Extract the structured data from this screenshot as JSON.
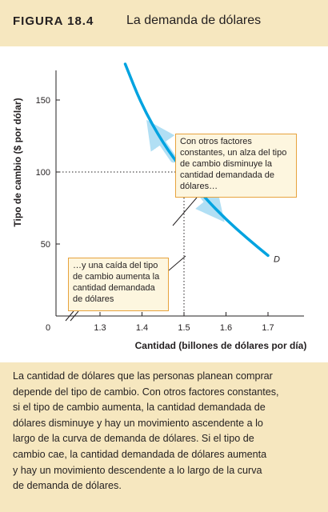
{
  "figure": {
    "label": "FIGURA 18.4",
    "title": "La demanda de dólares"
  },
  "chart_data": {
    "type": "line",
    "title": "La demanda de dólares",
    "xlabel": "Cantidad (billones de dólares por día)",
    "ylabel": "Tipo de cambio ($ por dólar)",
    "x_ticks": [
      "1.3",
      "1.4",
      "1.5",
      "1.6",
      "1.7"
    ],
    "y_ticks": [
      "50",
      "100",
      "150"
    ],
    "origin_label": "0",
    "xlim": [
      1.2,
      1.8
    ],
    "ylim": [
      0,
      180
    ],
    "axis_break": true,
    "grid": false,
    "series": [
      {
        "name": "D",
        "color": "#00a3e0",
        "x": [
          1.36,
          1.4,
          1.45,
          1.5,
          1.55,
          1.6,
          1.65,
          1.7
        ],
        "y": [
          175,
          146,
          120,
          100,
          82,
          67,
          54,
          42
        ]
      }
    ],
    "highlight_point": {
      "x": 1.5,
      "y": 100
    },
    "annotations": [
      "Con otros factores constantes, un alza del tipo de cambio disminuye la cantidad demandada de dólares…",
      "…y una caída del tipo de cambio aumenta la cantidad demandada de dólares"
    ]
  },
  "caption": "La cantidad de dólares que las personas planean comprar\ndepende del tipo de cambio. Con otros factores constantes,\nsi el tipo de cambio aumenta, la cantidad demandada de\ndólares disminuye y hay un movimiento ascendente a lo\nlargo de la curva de demanda de dólares. Si el tipo de\ncambio cae, la cantidad demandada de dólares aumenta\ny hay un movimiento descendente a lo largo de la curva\nde demanda de dólares.",
  "colors": {
    "header_bg": "#f6e7bf",
    "curve": "#00a3e0",
    "arrow": "#a9dcf3",
    "callout_border": "#e7a33d",
    "callout_bg": "#fdf6df"
  }
}
